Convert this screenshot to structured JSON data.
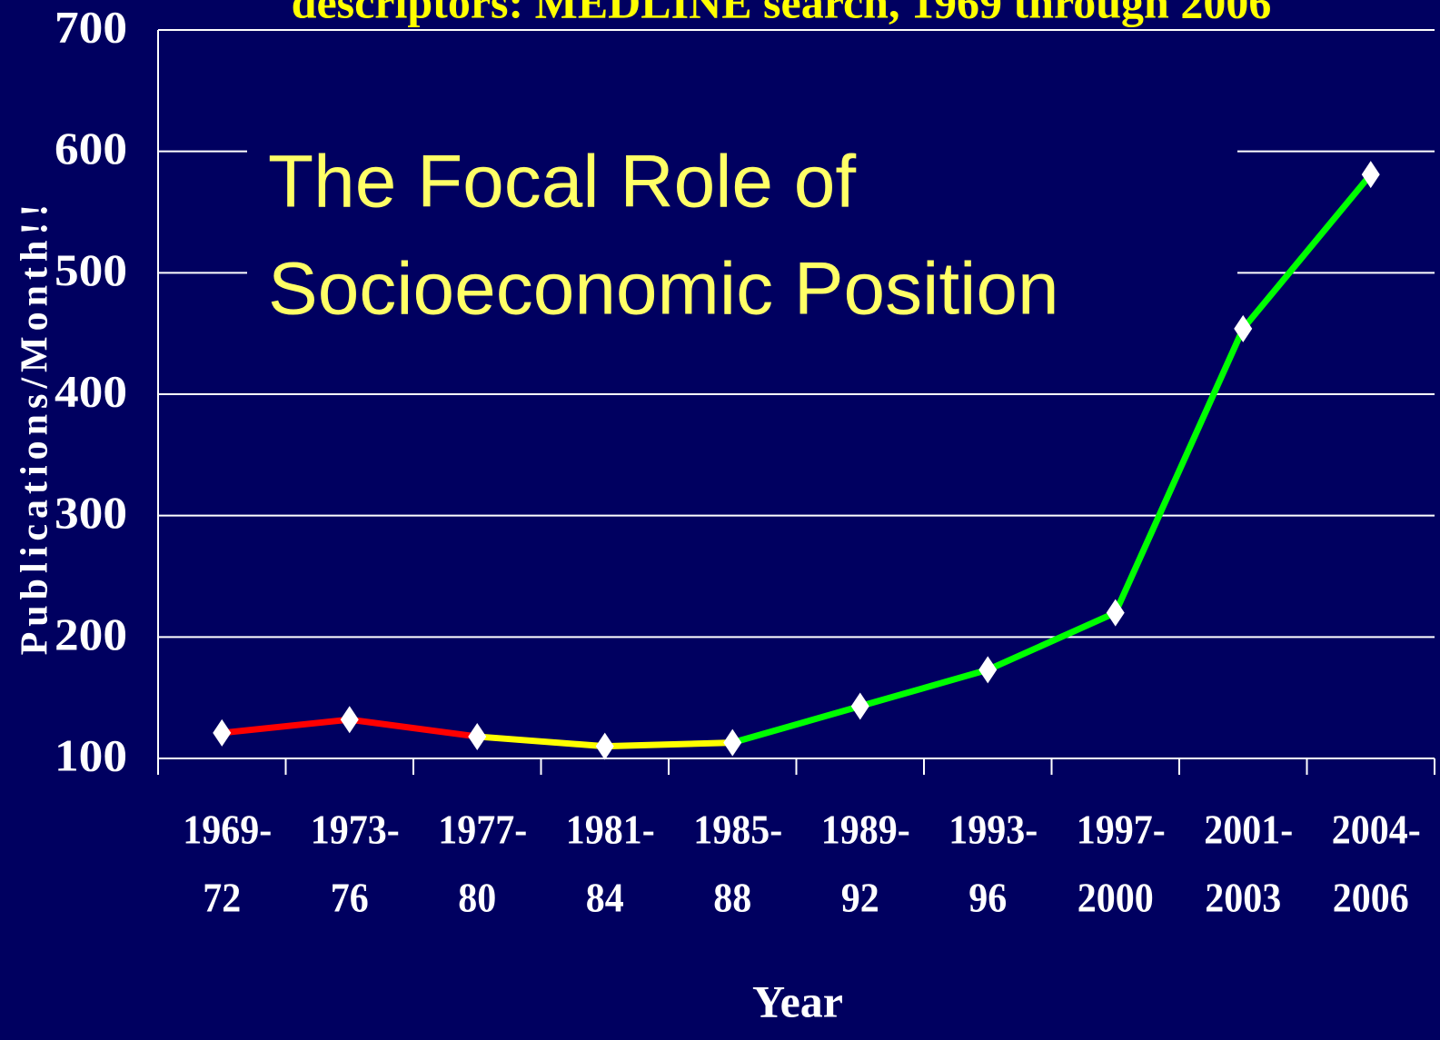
{
  "chart_data": {
    "type": "line",
    "title": "descriptors: MEDLINE search, 1969 through 2006",
    "annotation": [
      "The Focal Role of",
      "Socioeconomic Position"
    ],
    "y_label": "Publications/Month!!",
    "x_label": "Year",
    "categories": [
      [
        "1969-",
        "72"
      ],
      [
        "1973-",
        "76"
      ],
      [
        "1977-",
        "80"
      ],
      [
        "1981-",
        "84"
      ],
      [
        "1985-",
        "88"
      ],
      [
        "1989-",
        "92"
      ],
      [
        "1993-",
        "96"
      ],
      [
        "1997-",
        "2000"
      ],
      [
        "2001-",
        "2003"
      ],
      [
        "2004-",
        "2006"
      ]
    ],
    "values": [
      121,
      132,
      118,
      110,
      113,
      143,
      173,
      220,
      454,
      581
    ],
    "segment_colors": [
      "#ff0000",
      "#ff0000",
      "#ffff00",
      "#ffff00",
      "#00ff00",
      "#00ff00",
      "#00ff00",
      "#00ff00",
      "#00ff00"
    ],
    "marker_color": "#ffffff",
    "ylim": [
      100,
      700
    ],
    "yticks": [
      100,
      200,
      300,
      400,
      500,
      600,
      700
    ],
    "grid": true
  }
}
